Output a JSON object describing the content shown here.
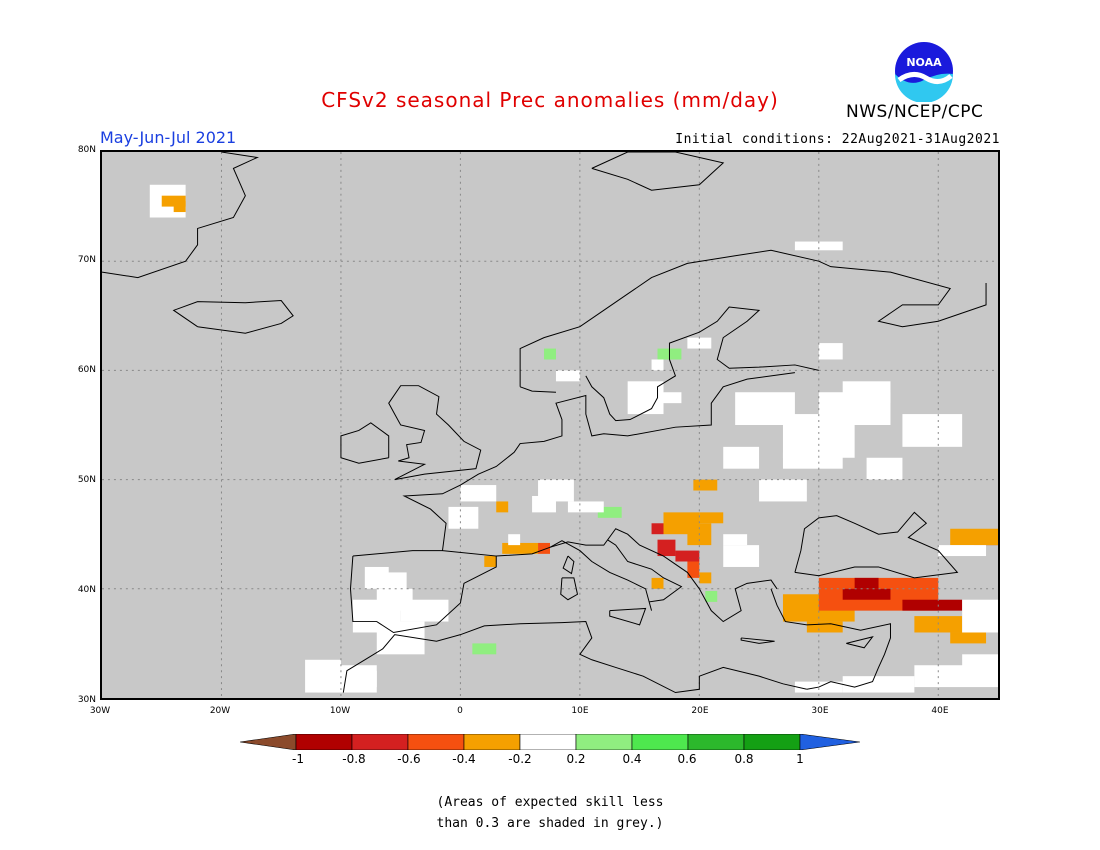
{
  "title": "CFSv2 seasonal Prec anomalies (mm/day)",
  "period": "May-Jun-Jul 2021",
  "initial_conditions": "Initial conditions: 22Aug2021-31Aug2021",
  "agency": "NWS/NCEP/CPC",
  "logo_text": "NOAA",
  "colors": {
    "title": "#e00000",
    "period": "#1a3fe0",
    "land_grey": "#c8c8c8",
    "coast": "#000000",
    "grid": "#888888"
  },
  "map": {
    "lon_range": [
      -30,
      45
    ],
    "lat_range": [
      30,
      80
    ],
    "lat_labels": [
      "80N",
      "70N",
      "60N",
      "50N",
      "40N",
      "30N"
    ],
    "lon_labels": [
      "30W",
      "20W",
      "10W",
      "0",
      "10E",
      "20E",
      "30E",
      "40E"
    ]
  },
  "colorbar": {
    "levels": [
      "-1",
      "-0.8",
      "-0.6",
      "-0.4",
      "-0.2",
      "0.2",
      "0.4",
      "0.6",
      "0.8",
      "1"
    ],
    "colors": [
      "#8b4a2b",
      "#b00000",
      "#d42020",
      "#f55010",
      "#f5a000",
      "#ffffff",
      "#90ee80",
      "#4ee84e",
      "#2cb82c",
      "#14a014",
      "#2060e0"
    ]
  },
  "legend_note_line1": "(Areas of expected skill less",
  "legend_note_line2": "than 0.3 are shaded in grey.)"
}
